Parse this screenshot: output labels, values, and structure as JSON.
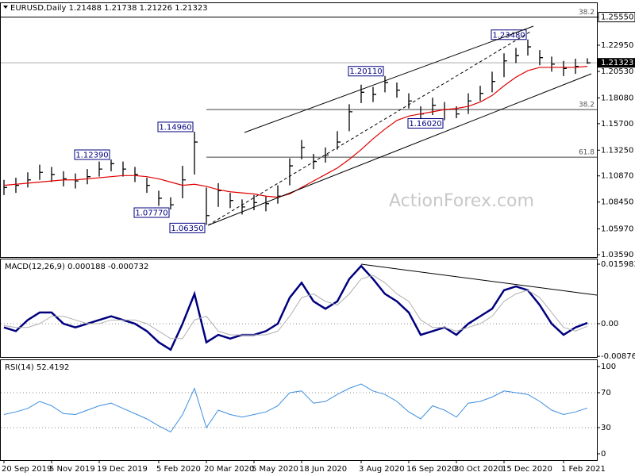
{
  "chart_data": [
    {
      "type": "ohlc",
      "title": "EURUSD,Daily 1.21488 1.21738 1.21226 1.21323",
      "watermark": "ActionForex.com",
      "categories": [
        "20 Sep 2019",
        null,
        null,
        null,
        "5 Nov 2019",
        null,
        null,
        null,
        "19 Dec 2019",
        null,
        null,
        null,
        null,
        "5 Feb 2020",
        null,
        null,
        null,
        "20 Mar 2020",
        null,
        null,
        null,
        "5 May 2020",
        null,
        null,
        null,
        "18 Jun 2020",
        null,
        null,
        null,
        null,
        "3 Aug 2020",
        null,
        null,
        null,
        "16 Sep 2020",
        null,
        null,
        null,
        "30 Oct 2020",
        null,
        null,
        null,
        "15 Dec 2020",
        null,
        null,
        null,
        null,
        "1 Feb 2021",
        null,
        null
      ],
      "close": [
        1.098,
        1.1,
        1.105,
        1.112,
        1.11,
        1.106,
        1.104,
        1.108,
        1.115,
        1.12,
        1.115,
        1.11,
        1.1,
        1.088,
        1.082,
        1.105,
        1.14,
        1.072,
        1.095,
        1.086,
        1.08,
        1.084,
        1.083,
        1.09,
        1.118,
        1.135,
        1.122,
        1.128,
        1.14,
        1.168,
        1.186,
        1.184,
        1.195,
        1.188,
        1.178,
        1.166,
        1.174,
        1.17,
        1.166,
        1.178,
        1.185,
        1.196,
        1.215,
        1.22,
        1.228,
        1.218,
        1.212,
        1.208,
        1.21,
        1.21323
      ],
      "high": [
        1.105,
        1.107,
        1.112,
        1.119,
        1.117,
        1.113,
        1.111,
        1.115,
        1.122,
        1.1239,
        1.122,
        1.117,
        1.107,
        1.095,
        1.089,
        1.118,
        1.1496,
        1.098,
        1.102,
        1.093,
        1.087,
        1.091,
        1.09,
        1.1,
        1.125,
        1.142,
        1.129,
        1.135,
        1.15,
        1.175,
        1.193,
        1.191,
        1.2011,
        1.195,
        1.185,
        1.173,
        1.181,
        1.177,
        1.173,
        1.185,
        1.192,
        1.205,
        1.222,
        1.227,
        1.2348,
        1.225,
        1.219,
        1.215,
        1.217,
        1.21738
      ],
      "low": [
        1.091,
        1.093,
        1.098,
        1.105,
        1.103,
        1.099,
        1.097,
        1.101,
        1.108,
        1.113,
        1.108,
        1.103,
        1.093,
        1.081,
        1.0777,
        1.088,
        1.11,
        1.0635,
        1.08,
        1.079,
        1.073,
        1.077,
        1.076,
        1.083,
        1.1,
        1.124,
        1.115,
        1.121,
        1.133,
        1.15,
        1.176,
        1.177,
        1.186,
        1.181,
        1.171,
        1.161,
        1.165,
        1.1602,
        1.162,
        1.166,
        1.178,
        1.186,
        1.2,
        1.213,
        1.22,
        1.211,
        1.205,
        1.201,
        1.203,
        1.21226
      ],
      "high_labels": [
        null,
        null,
        null,
        null,
        null,
        null,
        null,
        null,
        null,
        "1.12390",
        null,
        null,
        null,
        null,
        null,
        null,
        "1.14960",
        null,
        null,
        null,
        null,
        null,
        null,
        null,
        null,
        null,
        null,
        null,
        null,
        null,
        null,
        null,
        "1.20110",
        null,
        null,
        null,
        null,
        null,
        null,
        null,
        null,
        null,
        null,
        null,
        "1.23480",
        null,
        null,
        null,
        null,
        null
      ],
      "low_labels": [
        null,
        null,
        null,
        null,
        null,
        null,
        null,
        null,
        null,
        null,
        null,
        null,
        null,
        null,
        "1.07770",
        null,
        null,
        "1.06350",
        null,
        null,
        null,
        null,
        null,
        null,
        null,
        null,
        null,
        null,
        null,
        null,
        null,
        null,
        null,
        null,
        null,
        null,
        null,
        "1.16020",
        null,
        null,
        null,
        null,
        null,
        null,
        null,
        null,
        null,
        null,
        null,
        null
      ],
      "ma": [
        1.1,
        1.101,
        1.102,
        1.103,
        1.104,
        1.105,
        1.105,
        1.106,
        1.107,
        1.108,
        1.109,
        1.109,
        1.108,
        1.106,
        1.103,
        1.1,
        1.101,
        1.099,
        1.096,
        1.094,
        1.093,
        1.092,
        1.09,
        1.089,
        1.092,
        1.098,
        1.104,
        1.11,
        1.116,
        1.124,
        1.133,
        1.143,
        1.152,
        1.16,
        1.164,
        1.166,
        1.168,
        1.17,
        1.171,
        1.173,
        1.177,
        1.183,
        1.192,
        1.2,
        1.206,
        1.209,
        1.209,
        1.209,
        1.209,
        1.21
      ],
      "bar_color": "#000000",
      "ma_color": "#e00000",
      "current": {
        "value": 1.21323,
        "label": "1.21323"
      },
      "levels": [
        {
          "value": 1.2555,
          "label": "38.2"
        },
        {
          "value": 1.17,
          "label": "38.2"
        },
        {
          "value": 1.126,
          "label": "61.8"
        }
      ],
      "ylim": [
        1.0337,
        1.2691
      ],
      "yticks": [
        {
          "value": 1.0359,
          "label": "1.03590"
        },
        {
          "value": 1.0597,
          "label": "1.05970"
        },
        {
          "value": 1.0845,
          "label": "1.08450"
        },
        {
          "value": 1.1087,
          "label": "1.10870"
        },
        {
          "value": 1.1325,
          "label": "1.13250"
        },
        {
          "value": 1.157,
          "label": "1.15700"
        },
        {
          "value": 1.1808,
          "label": "1.18080"
        },
        {
          "value": 1.2053,
          "label": "1.20530"
        },
        {
          "value": 1.2295,
          "label": "1.22950"
        },
        {
          "value": 1.2555,
          "label": "1.25550"
        }
      ],
      "grid": false
    },
    {
      "type": "line",
      "title": "MACD(12,26,9) 0.000188 -0.000732",
      "series": [
        {
          "name": "MACD",
          "color": "#00007f",
          "width": 2.5,
          "values": [
            -0.001,
            -0.002,
            0.001,
            0.003,
            0.003,
            0.0,
            -0.001,
            0.0,
            0.001,
            0.002,
            0.001,
            0.0,
            -0.002,
            -0.005,
            -0.007,
            0.0,
            0.008,
            -0.005,
            -0.003,
            -0.004,
            -0.003,
            -0.003,
            -0.002,
            0.0,
            0.007,
            0.011,
            0.006,
            0.004,
            0.006,
            0.012,
            0.0155,
            0.012,
            0.008,
            0.006,
            0.003,
            -0.003,
            -0.002,
            -0.001,
            -0.003,
            0.0,
            0.002,
            0.004,
            0.009,
            0.01,
            0.009,
            0.005,
            0.0,
            -0.003,
            -0.001,
            0.0002
          ]
        },
        {
          "name": "Signal",
          "color": "#b0b0b0",
          "width": 1,
          "values": [
            -0.0005,
            -0.001,
            -0.001,
            0.0,
            0.002,
            0.002,
            0.001,
            0.0,
            0.0,
            0.001,
            0.001,
            0.001,
            0.0,
            -0.002,
            -0.004,
            -0.004,
            0.001,
            0.002,
            -0.002,
            -0.003,
            -0.003,
            -0.003,
            -0.003,
            -0.002,
            0.002,
            0.007,
            0.008,
            0.006,
            0.005,
            0.008,
            0.012,
            0.013,
            0.011,
            0.008,
            0.006,
            0.001,
            -0.001,
            -0.001,
            -0.002,
            -0.001,
            0.0,
            0.002,
            0.006,
            0.008,
            0.009,
            0.007,
            0.003,
            -0.001,
            -0.002,
            -0.0007
          ]
        }
      ],
      "ylim": [
        -0.00895,
        0.01748
      ],
      "yticks": [
        0.015983,
        {
          "value": 0,
          "label": "0.00"
        },
        -0.008762
      ],
      "grid": "dotted"
    },
    {
      "type": "line",
      "title": "RSI(14) 52.4192",
      "series": [
        {
          "name": "RSI",
          "color": "#3c8ee0",
          "width": 1,
          "values": [
            45,
            48,
            52,
            60,
            55,
            46,
            45,
            50,
            55,
            58,
            52,
            46,
            40,
            32,
            25,
            45,
            75,
            30,
            50,
            45,
            42,
            45,
            48,
            55,
            70,
            72,
            58,
            60,
            68,
            75,
            80,
            72,
            68,
            60,
            48,
            40,
            55,
            50,
            42,
            58,
            60,
            65,
            72,
            70,
            68,
            60,
            50,
            45,
            48,
            52.4192
          ]
        }
      ],
      "ylim": [
        -7.3,
        108.2
      ],
      "yticks": [
        100,
        70,
        30,
        0
      ],
      "grid": "dotted"
    }
  ]
}
